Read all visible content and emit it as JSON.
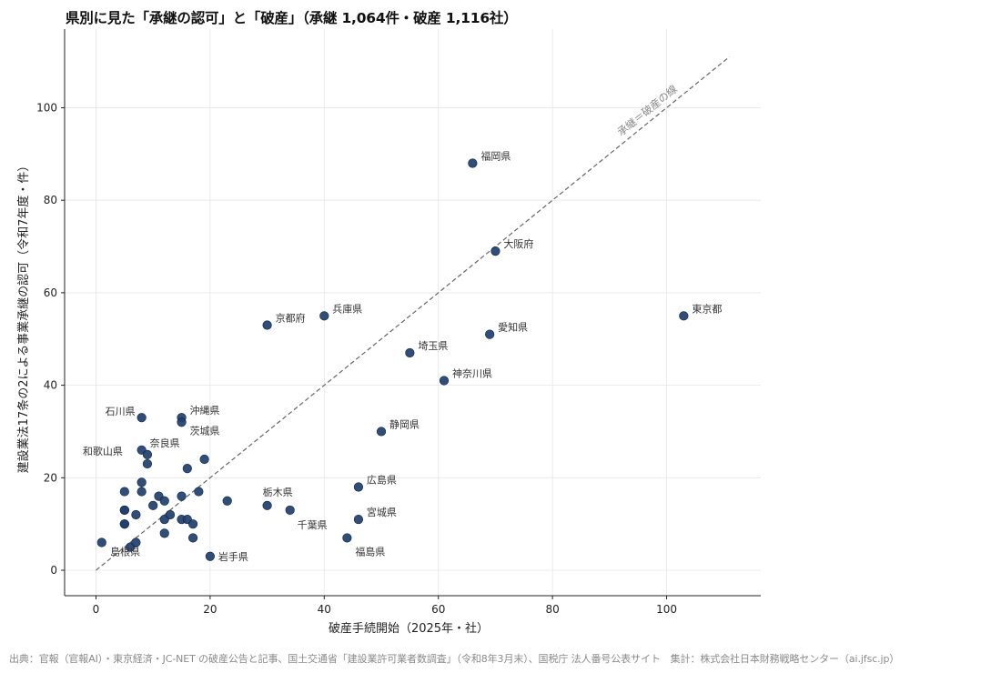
{
  "chart_data": {
    "type": "scatter",
    "title": "県別に見た「承継の認可」と「破産」（承継 1,064件・破産 1,116社）",
    "xlabel": "破産手続開始（2025年・社）",
    "ylabel": "建設業法17条の2による事業承継の認可（令和7年度・件）",
    "xlim": [
      -5.5,
      116.5
    ],
    "ylim": [
      -5.5,
      117
    ],
    "xticks": [
      0,
      20,
      40,
      60,
      80,
      100
    ],
    "yticks": [
      0,
      20,
      40,
      60,
      80,
      100
    ],
    "grid": true,
    "reference_line": {
      "label": "承継＝破産の線",
      "from": [
        0,
        0
      ],
      "to": [
        111,
        111
      ]
    },
    "marker_color": "#1f3f6e",
    "points": [
      {
        "x": 103,
        "y": 55,
        "label": "東京都"
      },
      {
        "x": 66,
        "y": 88,
        "label": "福岡県"
      },
      {
        "x": 70,
        "y": 69,
        "label": "大阪府"
      },
      {
        "x": 69,
        "y": 51,
        "label": "愛知県"
      },
      {
        "x": 55,
        "y": 47,
        "label": "埼玉県"
      },
      {
        "x": 61,
        "y": 41,
        "label": "神奈川県"
      },
      {
        "x": 50,
        "y": 30,
        "label": "静岡県"
      },
      {
        "x": 40,
        "y": 55,
        "label": "兵庫県"
      },
      {
        "x": 30,
        "y": 53,
        "label": "京都府"
      },
      {
        "x": 46,
        "y": 18,
        "label": "広島県"
      },
      {
        "x": 46,
        "y": 11,
        "label": "宮城県"
      },
      {
        "x": 44,
        "y": 7,
        "label": "福島県"
      },
      {
        "x": 34,
        "y": 13,
        "label": "千葉県"
      },
      {
        "x": 30,
        "y": 14,
        "label": "栃木県"
      },
      {
        "x": 20,
        "y": 3,
        "label": "岩手県"
      },
      {
        "x": 15,
        "y": 33,
        "label": "沖縄県"
      },
      {
        "x": 15,
        "y": 32,
        "label": "茨城県"
      },
      {
        "x": 8,
        "y": 33,
        "label": "石川県"
      },
      {
        "x": 8,
        "y": 26,
        "label": "奈良県"
      },
      {
        "x": 9,
        "y": 25,
        "label": "和歌山県"
      },
      {
        "x": 6,
        "y": 5,
        "label": "島根県"
      },
      {
        "x": 1,
        "y": 6,
        "label": ""
      },
      {
        "x": 7,
        "y": 6,
        "label": ""
      },
      {
        "x": 5,
        "y": 10,
        "label": ""
      },
      {
        "x": 5,
        "y": 10,
        "label": ""
      },
      {
        "x": 5,
        "y": 13,
        "label": ""
      },
      {
        "x": 5,
        "y": 13,
        "label": ""
      },
      {
        "x": 5,
        "y": 17,
        "label": ""
      },
      {
        "x": 7,
        "y": 12,
        "label": ""
      },
      {
        "x": 8,
        "y": 17,
        "label": ""
      },
      {
        "x": 8,
        "y": 19,
        "label": ""
      },
      {
        "x": 9,
        "y": 23,
        "label": ""
      },
      {
        "x": 10,
        "y": 14,
        "label": ""
      },
      {
        "x": 11,
        "y": 16,
        "label": ""
      },
      {
        "x": 12,
        "y": 15,
        "label": ""
      },
      {
        "x": 12,
        "y": 11,
        "label": ""
      },
      {
        "x": 12,
        "y": 8,
        "label": ""
      },
      {
        "x": 13,
        "y": 12,
        "label": ""
      },
      {
        "x": 15,
        "y": 11,
        "label": ""
      },
      {
        "x": 15,
        "y": 16,
        "label": ""
      },
      {
        "x": 16,
        "y": 22,
        "label": ""
      },
      {
        "x": 16,
        "y": 11,
        "label": ""
      },
      {
        "x": 17,
        "y": 10,
        "label": ""
      },
      {
        "x": 17,
        "y": 7,
        "label": ""
      },
      {
        "x": 18,
        "y": 17,
        "label": ""
      },
      {
        "x": 19,
        "y": 24,
        "label": ""
      },
      {
        "x": 23,
        "y": 15,
        "label": ""
      }
    ]
  },
  "footer": "出典：官報（官報AI）・東京経済・JC-NET の破産公告と記事、国土交通省「建設業許可業者数調査」（令和8年3月末）、国税庁 法人番号公表サイト　集計：株式会社日本財務戦略センター（ai.jfsc.jp）"
}
